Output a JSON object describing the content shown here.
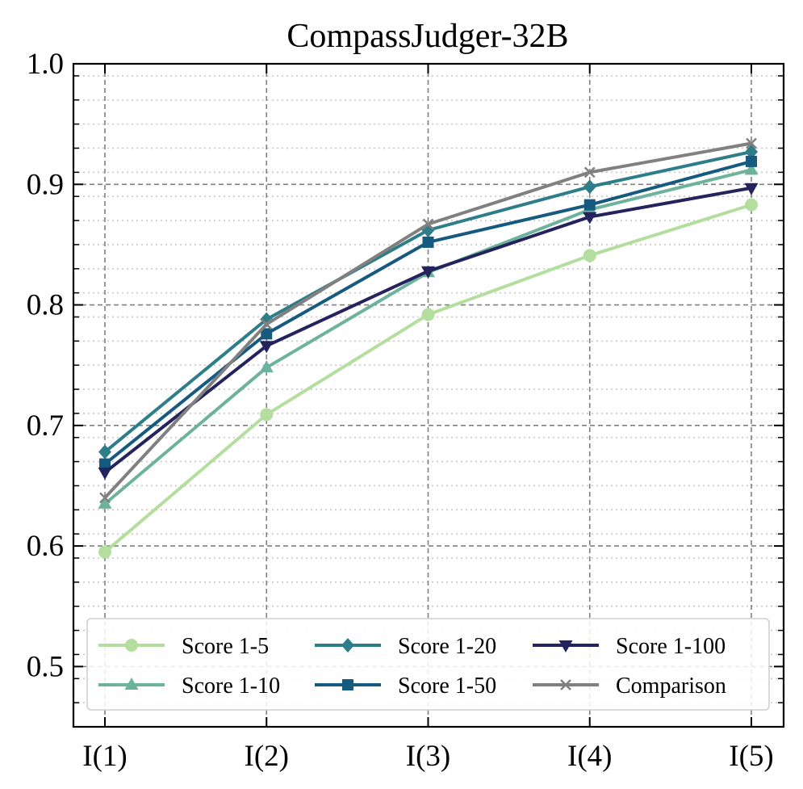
{
  "chart_data": {
    "type": "line",
    "title": "CompassJudger-32B",
    "xlabel": "",
    "ylabel": "",
    "categories": [
      "I(1)",
      "I(2)",
      "I(3)",
      "I(4)",
      "I(5)"
    ],
    "ylim": [
      0.45,
      1.0
    ],
    "yticks": [
      0.5,
      0.6,
      0.7,
      0.8,
      0.9,
      1.0
    ],
    "ytick_labels": [
      "0.5",
      "0.6",
      "0.7",
      "0.8",
      "0.9",
      "1.0"
    ],
    "grid": true,
    "legend_position": "lower-right",
    "series": [
      {
        "name": "Score 1-5",
        "values": [
          0.595,
          0.709,
          0.792,
          0.841,
          0.883
        ],
        "color": "#b4de9e",
        "marker": "circle"
      },
      {
        "name": "Score 1-10",
        "values": [
          0.635,
          0.748,
          0.827,
          0.879,
          0.912
        ],
        "color": "#6cb29c",
        "marker": "triangle-up"
      },
      {
        "name": "Score 1-20",
        "values": [
          0.678,
          0.788,
          0.862,
          0.898,
          0.927
        ],
        "color": "#2e7e8a",
        "marker": "diamond"
      },
      {
        "name": "Score 1-50",
        "values": [
          0.668,
          0.776,
          0.852,
          0.883,
          0.919
        ],
        "color": "#175a80",
        "marker": "square"
      },
      {
        "name": "Score 1-100",
        "values": [
          0.661,
          0.766,
          0.828,
          0.873,
          0.897
        ],
        "color": "#24235d",
        "marker": "triangle-down"
      },
      {
        "name": "Comparison",
        "values": [
          0.64,
          0.784,
          0.867,
          0.91,
          0.934
        ],
        "color": "#808080",
        "marker": "x"
      }
    ]
  }
}
